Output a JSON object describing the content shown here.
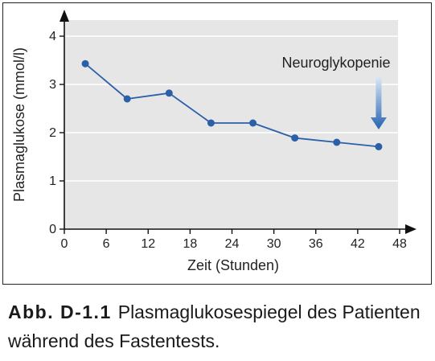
{
  "chart_data": {
    "type": "line",
    "xlabel": "Zeit (Stunden)",
    "ylabel": "Plasmaglukose (mmol/l)",
    "xlim": [
      0,
      48
    ],
    "ylim": [
      0,
      4
    ],
    "x_ticks": [
      0,
      6,
      12,
      18,
      24,
      30,
      36,
      42,
      48
    ],
    "y_ticks": [
      0,
      1,
      2,
      3,
      4
    ],
    "grid": true,
    "series": [
      {
        "x": [
          3,
          9,
          15,
          21,
          27,
          33,
          39,
          45
        ],
        "y": [
          3.43,
          2.7,
          2.82,
          2.2,
          2.2,
          1.89,
          1.8,
          1.71
        ]
      }
    ],
    "annotations": [
      {
        "text": "Neuroglykopenie",
        "x": 45,
        "y": 1.71
      }
    ],
    "colors": {
      "line": "#2b5fa8",
      "plot_background": "#e6e6e6",
      "grid": "#ffffff",
      "arrow_top": "#dbe9f6",
      "arrow_bottom": "#2563b0"
    }
  },
  "caption": {
    "label": "Abb. D-1.1",
    "text": "Plasmaglukosespiegel des Patienten während des Fastentests."
  }
}
